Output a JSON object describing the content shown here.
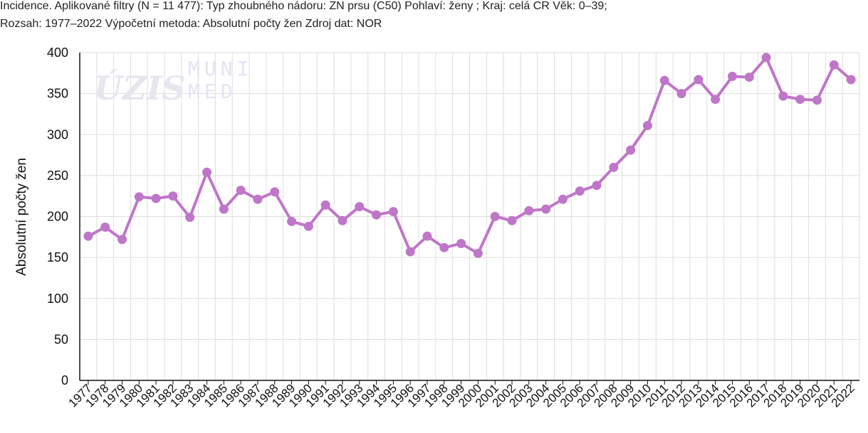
{
  "header": {
    "line1": "Incidence. Aplikované filtry (N = 11 477): Typ zhoubného nádoru: ZN prsu (C50) Pohlaví: ženy ; Kraj: celá CR Věk: 0–39;",
    "line2": "Rozsah: 1977–2022 Výpočetní metoda: Absolutní počty žen Zdroj dat: NOR"
  },
  "watermark": {
    "left": "ÚZIS",
    "right_top": "MUNI",
    "right_bottom": "MED"
  },
  "colors": {
    "series": "#bf76c8",
    "grid": "#dddddd",
    "axis": "#111111"
  },
  "chart_data": {
    "type": "line",
    "title": "",
    "xlabel": "",
    "ylabel": "Absolutní počty žen",
    "ylim": [
      0,
      400
    ],
    "yticks": [
      0,
      50,
      100,
      150,
      200,
      250,
      300,
      350,
      400
    ],
    "grid": true,
    "legend": "none",
    "categories": [
      "1977",
      "1978",
      "1979",
      "1980",
      "1981",
      "1982",
      "1983",
      "1984",
      "1985",
      "1986",
      "1987",
      "1988",
      "1989",
      "1990",
      "1991",
      "1992",
      "1993",
      "1994",
      "1995",
      "1996",
      "1997",
      "1998",
      "1999",
      "2000",
      "2001",
      "2002",
      "2003",
      "2004",
      "2005",
      "2006",
      "2007",
      "2008",
      "2009",
      "2010",
      "2011",
      "2012",
      "2013",
      "2014",
      "2015",
      "2016",
      "2017",
      "2018",
      "2019",
      "2020",
      "2021",
      "2022"
    ],
    "series": [
      {
        "values": [
          176,
          187,
          172,
          224,
          222,
          225,
          199,
          254,
          209,
          232,
          221,
          230,
          194,
          188,
          214,
          195,
          212,
          202,
          206,
          157,
          176,
          162,
          167,
          155,
          200,
          195,
          207,
          209,
          221,
          231,
          238,
          260,
          281,
          311,
          366,
          350,
          367,
          343,
          371,
          370,
          394,
          347,
          343,
          342,
          385,
          367
        ]
      }
    ]
  }
}
